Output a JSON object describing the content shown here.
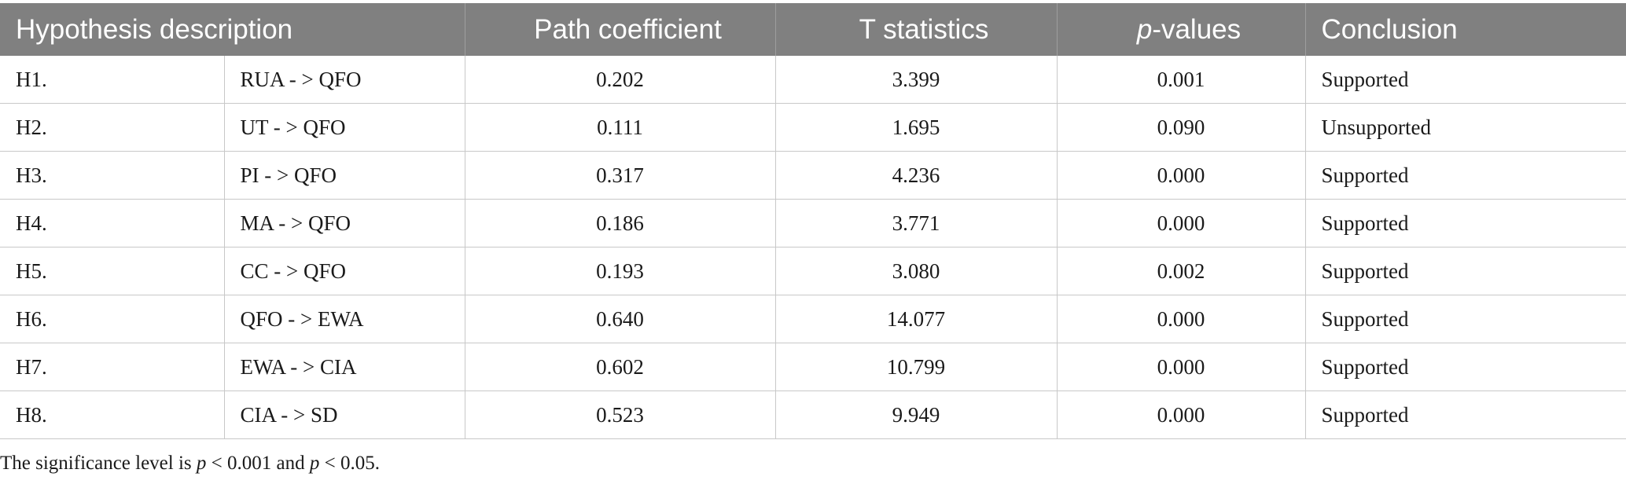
{
  "header": {
    "hypothesis": "Hypothesis description",
    "path_coefficient": "Path coefficient",
    "t_statistics": "T statistics",
    "p_values_italic": "p",
    "p_values_rest": "-values",
    "conclusion": "Conclusion"
  },
  "rows": [
    {
      "id": "H1.",
      "path": "RUA - > QFO",
      "coef": "0.202",
      "t": "3.399",
      "p": "0.001",
      "conclusion": "Supported"
    },
    {
      "id": "H2.",
      "path": "UT - > QFO",
      "coef": "0.111",
      "t": "1.695",
      "p": "0.090",
      "conclusion": "Unsupported"
    },
    {
      "id": "H3.",
      "path": "PI - > QFO",
      "coef": "0.317",
      "t": "4.236",
      "p": "0.000",
      "conclusion": "Supported"
    },
    {
      "id": "H4.",
      "path": "MA - > QFO",
      "coef": "0.186",
      "t": "3.771",
      "p": "0.000",
      "conclusion": "Supported"
    },
    {
      "id": "H5.",
      "path": "CC - > QFO",
      "coef": "0.193",
      "t": "3.080",
      "p": "0.002",
      "conclusion": "Supported"
    },
    {
      "id": "H6.",
      "path": "QFO - > EWA",
      "coef": "0.640",
      "t": "14.077",
      "p": "0.000",
      "conclusion": "Supported"
    },
    {
      "id": "H7.",
      "path": "EWA - > CIA",
      "coef": "0.602",
      "t": "10.799",
      "p": "0.000",
      "conclusion": "Supported"
    },
    {
      "id": "H8.",
      "path": "CIA - > SD",
      "coef": "0.523",
      "t": "9.949",
      "p": "0.000",
      "conclusion": "Supported"
    }
  ],
  "note": {
    "part1": "The significance level is ",
    "p1": "p",
    "part2": " < 0.001 and ",
    "p2": "p",
    "part3": " < 0.05."
  },
  "colors": {
    "header_bg": "#808080",
    "header_text": "#ffffff",
    "grid": "#c8c8c8"
  }
}
